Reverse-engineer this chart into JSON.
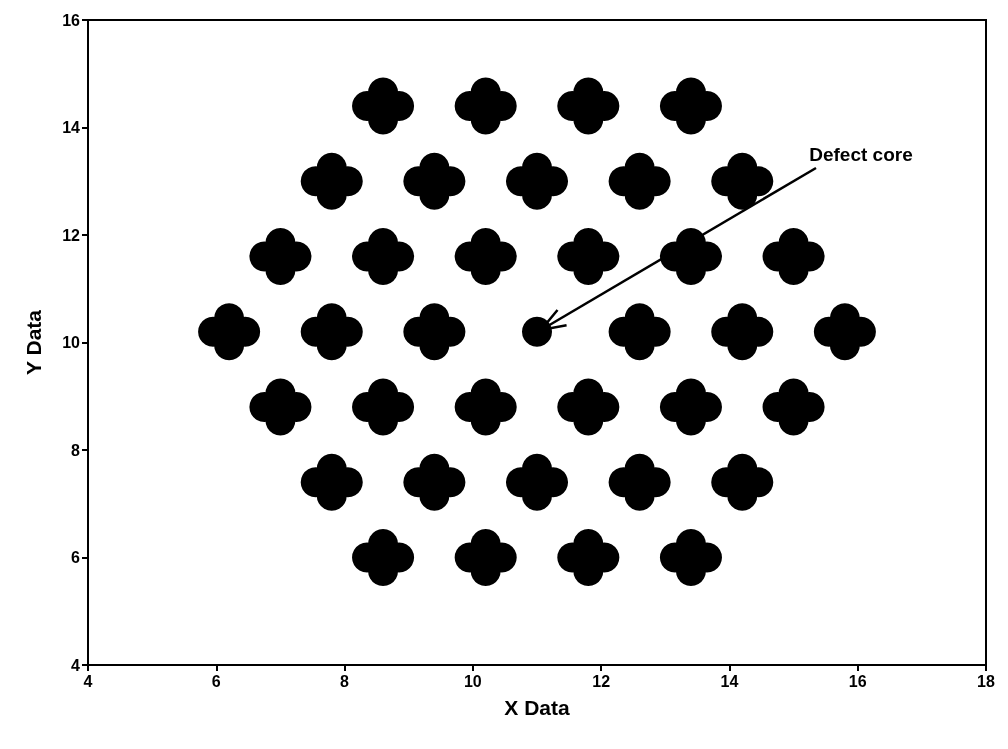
{
  "chart_data": {
    "type": "scatter",
    "xlabel": "X Data",
    "ylabel": "Y Data",
    "xlim": [
      4,
      18
    ],
    "ylim": [
      4,
      16
    ],
    "xticks": [
      4,
      6,
      8,
      10,
      12,
      14,
      16,
      18
    ],
    "yticks": [
      4,
      6,
      8,
      10,
      12,
      14,
      16
    ],
    "grid": false,
    "marker": "circle",
    "annotations": [
      {
        "text": "Defect core",
        "x": 11,
        "y": 10.2
      }
    ],
    "series": [
      {
        "color": "#000000",
        "x": [
          8.35,
          8.85,
          8.6,
          8.6,
          9.95,
          10.45,
          10.2,
          10.2,
          11.55,
          12.05,
          11.8,
          11.8,
          13.15,
          13.65,
          13.4,
          13.4
        ],
        "values": [
          14.4,
          14.4,
          14.15,
          14.65,
          14.4,
          14.4,
          14.15,
          14.65,
          14.4,
          14.4,
          14.15,
          14.65,
          14.4,
          14.4,
          14.15,
          14.65
        ]
      },
      {
        "color": "#000000",
        "x": [
          7.55,
          8.05,
          7.8,
          7.8,
          9.15,
          9.65,
          9.4,
          9.4,
          10.75,
          11.25,
          11,
          11,
          12.35,
          12.85,
          12.6,
          12.6,
          13.95,
          14.45,
          14.2,
          14.2
        ],
        "values": [
          13,
          13,
          12.75,
          13.25,
          13,
          13,
          12.75,
          13.25,
          13,
          13,
          12.75,
          13.25,
          13,
          13,
          12.75,
          13.25,
          13,
          13,
          12.75,
          13.25
        ]
      },
      {
        "color": "#000000",
        "x": [
          6.75,
          7.25,
          7,
          7,
          8.35,
          8.85,
          8.6,
          8.6,
          9.95,
          10.45,
          10.2,
          10.2,
          11.55,
          12.05,
          11.8,
          11.8,
          13.15,
          13.65,
          13.4,
          13.4,
          14.75,
          15.25,
          15,
          15
        ],
        "values": [
          11.6,
          11.6,
          11.35,
          11.85,
          11.6,
          11.6,
          11.35,
          11.85,
          11.6,
          11.6,
          11.35,
          11.85,
          11.6,
          11.6,
          11.35,
          11.85,
          11.6,
          11.6,
          11.35,
          11.85,
          11.6,
          11.6,
          11.35,
          11.85
        ]
      },
      {
        "color": "#000000",
        "x": [
          5.95,
          6.45,
          6.2,
          6.2,
          7.55,
          8.05,
          7.8,
          7.8,
          9.15,
          9.65,
          9.4,
          9.4,
          12.35,
          12.85,
          12.6,
          12.6,
          13.95,
          14.45,
          14.2,
          14.2,
          15.55,
          16.05,
          15.8,
          15.8
        ],
        "values": [
          10.2,
          10.2,
          9.95,
          10.45,
          10.2,
          10.2,
          9.95,
          10.45,
          10.2,
          10.2,
          9.95,
          10.45,
          10.2,
          10.2,
          9.95,
          10.45,
          10.2,
          10.2,
          9.95,
          10.45,
          10.2,
          10.2,
          9.95,
          10.45
        ]
      },
      {
        "color": "#000000",
        "x": [
          11
        ],
        "values": [
          10.2
        ]
      },
      {
        "color": "#000000",
        "x": [
          6.75,
          7.25,
          7,
          7,
          8.35,
          8.85,
          8.6,
          8.6,
          9.95,
          10.45,
          10.2,
          10.2,
          11.55,
          12.05,
          11.8,
          11.8,
          13.15,
          13.65,
          13.4,
          13.4,
          14.75,
          15.25,
          15,
          15
        ],
        "values": [
          8.8,
          8.8,
          8.55,
          9.05,
          8.8,
          8.8,
          8.55,
          9.05,
          8.8,
          8.8,
          8.55,
          9.05,
          8.8,
          8.8,
          8.55,
          9.05,
          8.8,
          8.8,
          8.55,
          9.05,
          8.8,
          8.8,
          8.55,
          9.05
        ]
      },
      {
        "color": "#000000",
        "x": [
          7.55,
          8.05,
          7.8,
          7.8,
          9.15,
          9.65,
          9.4,
          9.4,
          10.75,
          11.25,
          11,
          11,
          12.35,
          12.85,
          12.6,
          12.6,
          13.95,
          14.45,
          14.2,
          14.2
        ],
        "values": [
          7.4,
          7.4,
          7.15,
          7.65,
          7.4,
          7.4,
          7.15,
          7.65,
          7.4,
          7.4,
          7.15,
          7.65,
          7.4,
          7.4,
          7.15,
          7.65,
          7.4,
          7.4,
          7.15,
          7.65
        ]
      },
      {
        "color": "#000000",
        "x": [
          8.35,
          8.85,
          8.6,
          8.6,
          9.95,
          10.45,
          10.2,
          10.2,
          11.55,
          12.05,
          11.8,
          11.8,
          13.15,
          13.65,
          13.4,
          13.4
        ],
        "values": [
          6,
          6,
          5.75,
          6.25,
          6,
          6,
          5.75,
          6.25,
          6,
          6,
          5.75,
          6.25,
          6,
          6,
          5.75,
          6.25
        ]
      }
    ]
  }
}
